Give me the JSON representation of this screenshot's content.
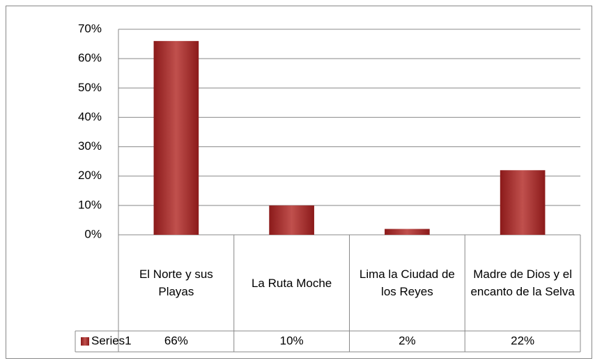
{
  "chart_data": {
    "type": "bar",
    "categories": [
      "El Norte y sus Playas",
      "La Ruta Moche",
      "Lima la Ciudad de los Reyes",
      "Madre de Dios y el encanto de la Selva"
    ],
    "series": [
      {
        "name": "Series1",
        "color": "#c0504d",
        "values": [
          66,
          10,
          2,
          22
        ],
        "value_labels": [
          "66%",
          "10%",
          "2%",
          "22%"
        ]
      }
    ],
    "ylim": [
      0,
      70
    ],
    "yticks": [
      {
        "value": 0,
        "label": "0%"
      },
      {
        "value": 10,
        "label": "10%"
      },
      {
        "value": 20,
        "label": "20%"
      },
      {
        "value": 30,
        "label": "30%"
      },
      {
        "value": 40,
        "label": "40%"
      },
      {
        "value": 50,
        "label": "50%"
      },
      {
        "value": 60,
        "label": "60%"
      },
      {
        "value": 70,
        "label": "70%"
      }
    ],
    "grid": true
  }
}
